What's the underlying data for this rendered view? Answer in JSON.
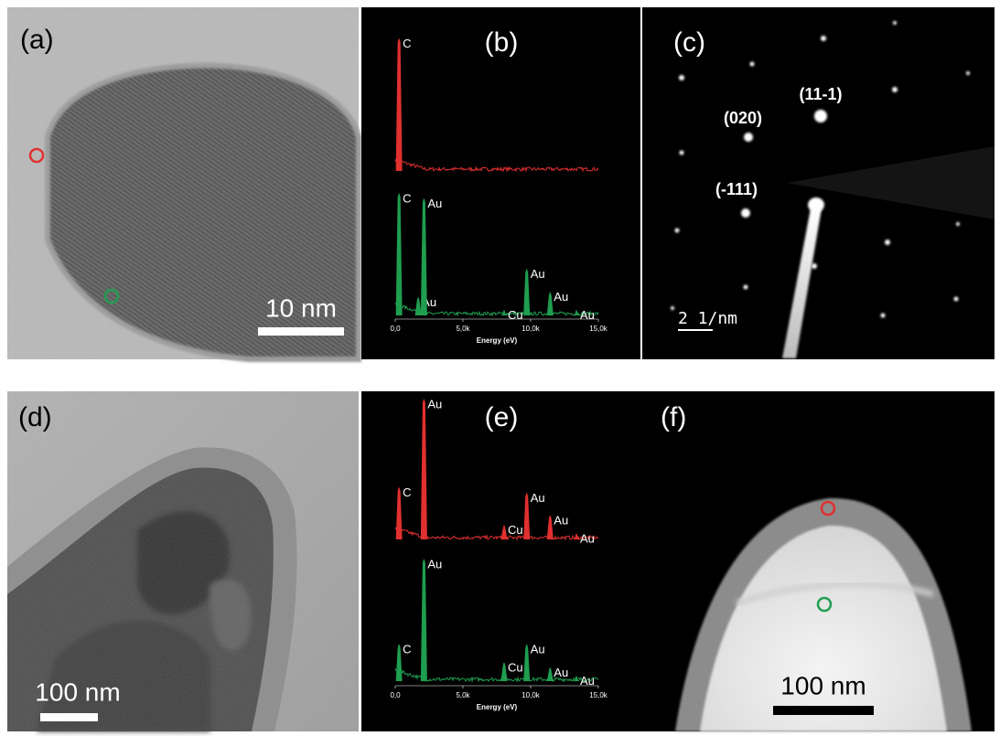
{
  "panels": [
    {
      "label": "(a)",
      "scale_bar": "10 nm"
    },
    {
      "label": "(b)",
      "xlabel": "Energy (eV)",
      "xlim": [
        0,
        15000
      ],
      "xticks": [
        {
          "value": 0,
          "label": "0,0"
        },
        {
          "value": 5000,
          "label": "5,0k"
        },
        {
          "value": 10000,
          "label": "10,0k"
        },
        {
          "value": 15000,
          "label": "15,0k"
        }
      ],
      "spectra": [
        {
          "color": "#e0302f",
          "peaks": [
            {
              "label": "C",
              "energy": 280,
              "height": 95
            }
          ]
        },
        {
          "color": "#1f9e4f",
          "peaks": [
            {
              "label": "C",
              "energy": 280,
              "height": 95
            },
            {
              "label": "Au",
              "energy": 1700,
              "height": 14
            },
            {
              "label": "Au",
              "energy": 2120,
              "height": 91
            },
            {
              "label": "Cu",
              "energy": 8040,
              "height": 4
            },
            {
              "label": "Au",
              "energy": 9710,
              "height": 36
            },
            {
              "label": "Au",
              "energy": 11440,
              "height": 18
            },
            {
              "label": "Au",
              "energy": 13380,
              "height": 4
            }
          ]
        }
      ]
    },
    {
      "label": "(c)",
      "scale_bar": "2 1/nm",
      "spots": [
        "(11-1)",
        "(020)",
        "(-111)"
      ]
    },
    {
      "label": "(d)",
      "scale_bar": "100 nm"
    },
    {
      "label": "(e)",
      "xlabel": "Energy (eV)",
      "xlim": [
        0,
        15000
      ],
      "xticks": [
        {
          "value": 0,
          "label": "0,0"
        },
        {
          "value": 5000,
          "label": "5,0k"
        },
        {
          "value": 10000,
          "label": "10,0k"
        },
        {
          "value": 15000,
          "label": "15,0k"
        }
      ],
      "spectra": [
        {
          "color": "#e0302f",
          "peaks": [
            {
              "label": "C",
              "energy": 280,
              "height": 37
            },
            {
              "label": "Au",
              "energy": 2120,
              "height": 100
            },
            {
              "label": "Cu",
              "energy": 8040,
              "height": 10
            },
            {
              "label": "Au",
              "energy": 9710,
              "height": 33
            },
            {
              "label": "Au",
              "energy": 11440,
              "height": 17
            },
            {
              "label": "Au",
              "energy": 13380,
              "height": 4
            }
          ]
        },
        {
          "color": "#1f9e4f",
          "peaks": [
            {
              "label": "C",
              "energy": 280,
              "height": 30
            },
            {
              "label": "Au",
              "energy": 2120,
              "height": 100
            },
            {
              "label": "Cu",
              "energy": 8040,
              "height": 15
            },
            {
              "label": "Au",
              "energy": 9710,
              "height": 30
            },
            {
              "label": "Au",
              "energy": 11440,
              "height": 11
            },
            {
              "label": "Au",
              "energy": 13380,
              "height": 4
            }
          ]
        }
      ]
    },
    {
      "label": "(f)",
      "scale_bar": "100 nm"
    }
  ]
}
